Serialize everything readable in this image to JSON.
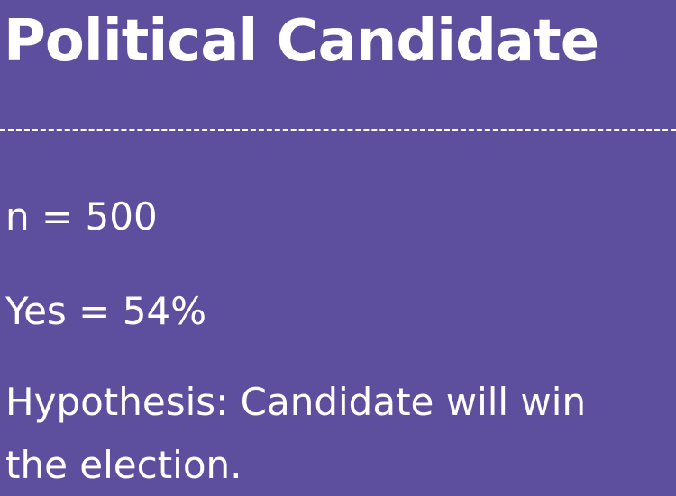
{
  "slide": {
    "title": "Political Candidate",
    "lines": [
      "n = 500",
      "Yes = 54%",
      "Hypothesis: Candidate will win",
      "the election."
    ]
  },
  "colors": {
    "background": "#5e4f9e",
    "text": "#ffffff"
  }
}
